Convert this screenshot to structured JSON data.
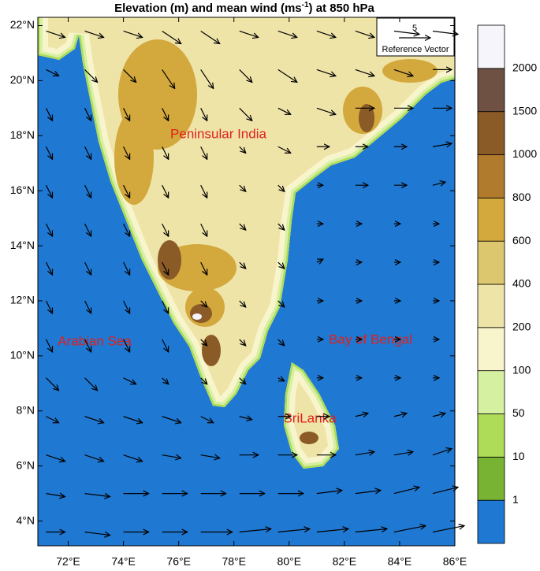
{
  "chart_data": {
    "type": "vector_map",
    "title": "Elevation (m) and mean wind (ms",
    "title_superscript": "-1",
    "title_end": ") at 850 hPa",
    "xlim": [
      70.9,
      86
    ],
    "ylim": [
      3.1,
      22.3
    ],
    "xticks": [
      {
        "value": 72,
        "label": "72°E"
      },
      {
        "value": 74,
        "label": "74°E"
      },
      {
        "value": 76,
        "label": "76°E"
      },
      {
        "value": 78,
        "label": "78°E"
      },
      {
        "value": 80,
        "label": "80°E"
      },
      {
        "value": 82,
        "label": "82°E"
      },
      {
        "value": 84,
        "label": "84°E"
      },
      {
        "value": 86,
        "label": "86°E"
      }
    ],
    "yticks": [
      {
        "value": 4,
        "label": "4°N"
      },
      {
        "value": 6,
        "label": "6°N"
      },
      {
        "value": 8,
        "label": "8°N"
      },
      {
        "value": 10,
        "label": "10°N"
      },
      {
        "value": 12,
        "label": "12°N"
      },
      {
        "value": 14,
        "label": "14°N"
      },
      {
        "value": 16,
        "label": "16°N"
      },
      {
        "value": 18,
        "label": "18°N"
      },
      {
        "value": 20,
        "label": "20°N"
      },
      {
        "value": 22,
        "label": "22°N"
      }
    ],
    "colorbar": {
      "levels": [
        1,
        10,
        50,
        100,
        200,
        400,
        600,
        800,
        1000,
        1500,
        2000
      ],
      "colors": [
        "#1f78d2",
        "#78b334",
        "#aedb58",
        "#d6f0a2",
        "#f8f4cc",
        "#efe4a8",
        "#dcc66e",
        "#d3a83c",
        "#b07b2c",
        "#8a5a27",
        "#6e5142",
        "#f5f5fb"
      ]
    },
    "annotations": [
      "Peninsular India",
      "Arabian Sea",
      "Bay of Bengal",
      "SriLanka"
    ],
    "reference_vector": {
      "value": 5,
      "label": "Reference Vector"
    },
    "wind": {
      "lons": [
        71.2,
        72.6,
        74.0,
        75.4,
        76.8,
        78.2,
        79.6,
        81.0,
        82.4,
        83.8,
        85.2
      ],
      "lats": [
        21.8,
        20.4,
        19.0,
        17.6,
        16.2,
        14.8,
        13.4,
        12.0,
        10.6,
        9.2,
        7.8,
        6.4,
        5.0,
        3.6
      ],
      "u": [
        [
          3,
          3,
          3,
          3,
          3,
          3,
          3,
          3,
          3,
          4,
          4
        ],
        [
          2,
          2,
          2,
          2,
          2,
          2,
          3,
          3,
          3,
          3,
          3
        ],
        [
          1,
          1,
          1,
          1,
          1,
          2,
          2,
          3,
          3,
          3,
          3
        ],
        [
          1,
          1,
          1,
          1,
          1,
          1,
          2,
          2,
          2,
          2,
          3
        ],
        [
          1,
          1,
          1,
          1,
          1,
          1,
          1,
          1,
          2,
          2,
          2
        ],
        [
          1,
          1,
          1,
          1,
          1,
          1,
          1,
          1,
          1,
          1,
          1
        ],
        [
          1,
          1,
          1,
          1,
          1,
          1,
          1,
          1,
          1,
          1,
          1
        ],
        [
          1,
          1,
          1,
          1,
          1,
          1,
          1,
          1,
          1,
          1,
          1
        ],
        [
          1,
          1,
          1,
          1,
          1,
          1,
          1,
          1,
          1,
          1,
          1
        ],
        [
          2,
          2,
          2,
          1,
          1,
          1,
          1,
          1,
          1,
          1,
          1
        ],
        [
          2,
          3,
          3,
          3,
          2,
          2,
          2,
          2,
          2,
          2,
          2
        ],
        [
          3,
          3,
          3,
          3,
          3,
          3,
          3,
          3,
          3,
          3,
          3
        ],
        [
          3,
          4,
          4,
          4,
          4,
          4,
          4,
          4,
          4,
          4,
          4
        ],
        [
          3,
          4,
          4,
          4,
          5,
          5,
          5,
          5,
          5,
          5,
          5
        ]
      ],
      "v": [
        [
          -1,
          -1,
          -1,
          -2,
          -2,
          -1,
          -1,
          -1,
          -1,
          -0.5,
          -0.5
        ],
        [
          -1,
          -2,
          -2,
          -3,
          -3,
          -2,
          -2,
          -1,
          -1,
          -1,
          0
        ],
        [
          -2,
          -2,
          -2,
          -2,
          -2,
          -2,
          -1,
          -1,
          0,
          0,
          0
        ],
        [
          -2,
          -2,
          -2,
          -2,
          -2,
          -1,
          -1,
          0,
          0,
          0,
          0.5
        ],
        [
          -2,
          -2,
          -2,
          -2,
          -2,
          -1,
          -1,
          0,
          0,
          0,
          0.5
        ],
        [
          -2,
          -2,
          -2,
          -2,
          -2,
          -1,
          -1,
          0,
          0,
          0,
          0
        ],
        [
          -2,
          -2,
          -2,
          -2,
          -2,
          -1,
          -1,
          0.5,
          0,
          0,
          0
        ],
        [
          -2,
          -2,
          -2,
          -2,
          -1,
          -1,
          -1,
          0,
          0,
          0,
          0
        ],
        [
          -2,
          -2,
          -2,
          -2,
          -1,
          -1,
          -1,
          0,
          0,
          0,
          0
        ],
        [
          -2,
          -2,
          -1,
          -1,
          -1,
          -1,
          -0.5,
          0,
          0,
          0,
          0
        ],
        [
          -1,
          -1,
          -1,
          -1,
          -1,
          -0.5,
          0,
          0,
          0.5,
          0.5,
          0.5
        ],
        [
          -1,
          -1,
          -1,
          -0.5,
          -0.5,
          0,
          0,
          0,
          0.5,
          0.5,
          1
        ],
        [
          -0.5,
          -0.5,
          0,
          0,
          0,
          0,
          0,
          0.5,
          0.5,
          1,
          1
        ],
        [
          0,
          -0.5,
          0,
          0,
          0,
          0.5,
          0.5,
          0.5,
          0.5,
          1,
          1
        ]
      ]
    }
  }
}
